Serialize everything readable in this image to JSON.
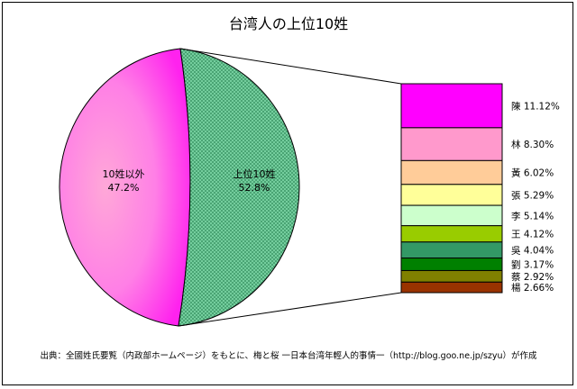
{
  "chart_data": {
    "type": "pie-of-bar",
    "title": "台湾人の上位10姓",
    "pie": [
      {
        "label": "10姓以外",
        "value_text": "47.2%",
        "value": 47.2,
        "color": "#ff3df0"
      },
      {
        "label": "上位10姓",
        "value_text": "52.8%",
        "value": 52.8,
        "color": "#7fd9a8"
      }
    ],
    "bar": [
      {
        "surname": "陳",
        "value_text": "11.12%",
        "value": 11.12,
        "color": "#ff00ff"
      },
      {
        "surname": "林",
        "value_text": "8.30%",
        "value": 8.3,
        "color": "#ff99cc"
      },
      {
        "surname": "黃",
        "value_text": "6.02%",
        "value": 6.02,
        "color": "#ffcc99"
      },
      {
        "surname": "張",
        "value_text": "5.29%",
        "value": 5.29,
        "color": "#ffff99"
      },
      {
        "surname": "李",
        "value_text": "5.14%",
        "value": 5.14,
        "color": "#ccffcc"
      },
      {
        "surname": "王",
        "value_text": "4.12%",
        "value": 4.12,
        "color": "#99cc00"
      },
      {
        "surname": "吳",
        "value_text": "4.04%",
        "value": 4.04,
        "color": "#339966"
      },
      {
        "surname": "劉",
        "value_text": "3.17%",
        "value": 3.17,
        "color": "#008000"
      },
      {
        "surname": "蔡",
        "value_text": "2.92%",
        "value": 2.92,
        "color": "#808000"
      },
      {
        "surname": "楊",
        "value_text": "2.66%",
        "value": 2.66,
        "color": "#993300"
      }
    ]
  },
  "source": "出典：全國姓氏要覧（内政部ホームページ）をもとに、梅と桜 一日本台湾年輕人的事情一（http://blog.goo.ne.jp/szyu）が作成"
}
